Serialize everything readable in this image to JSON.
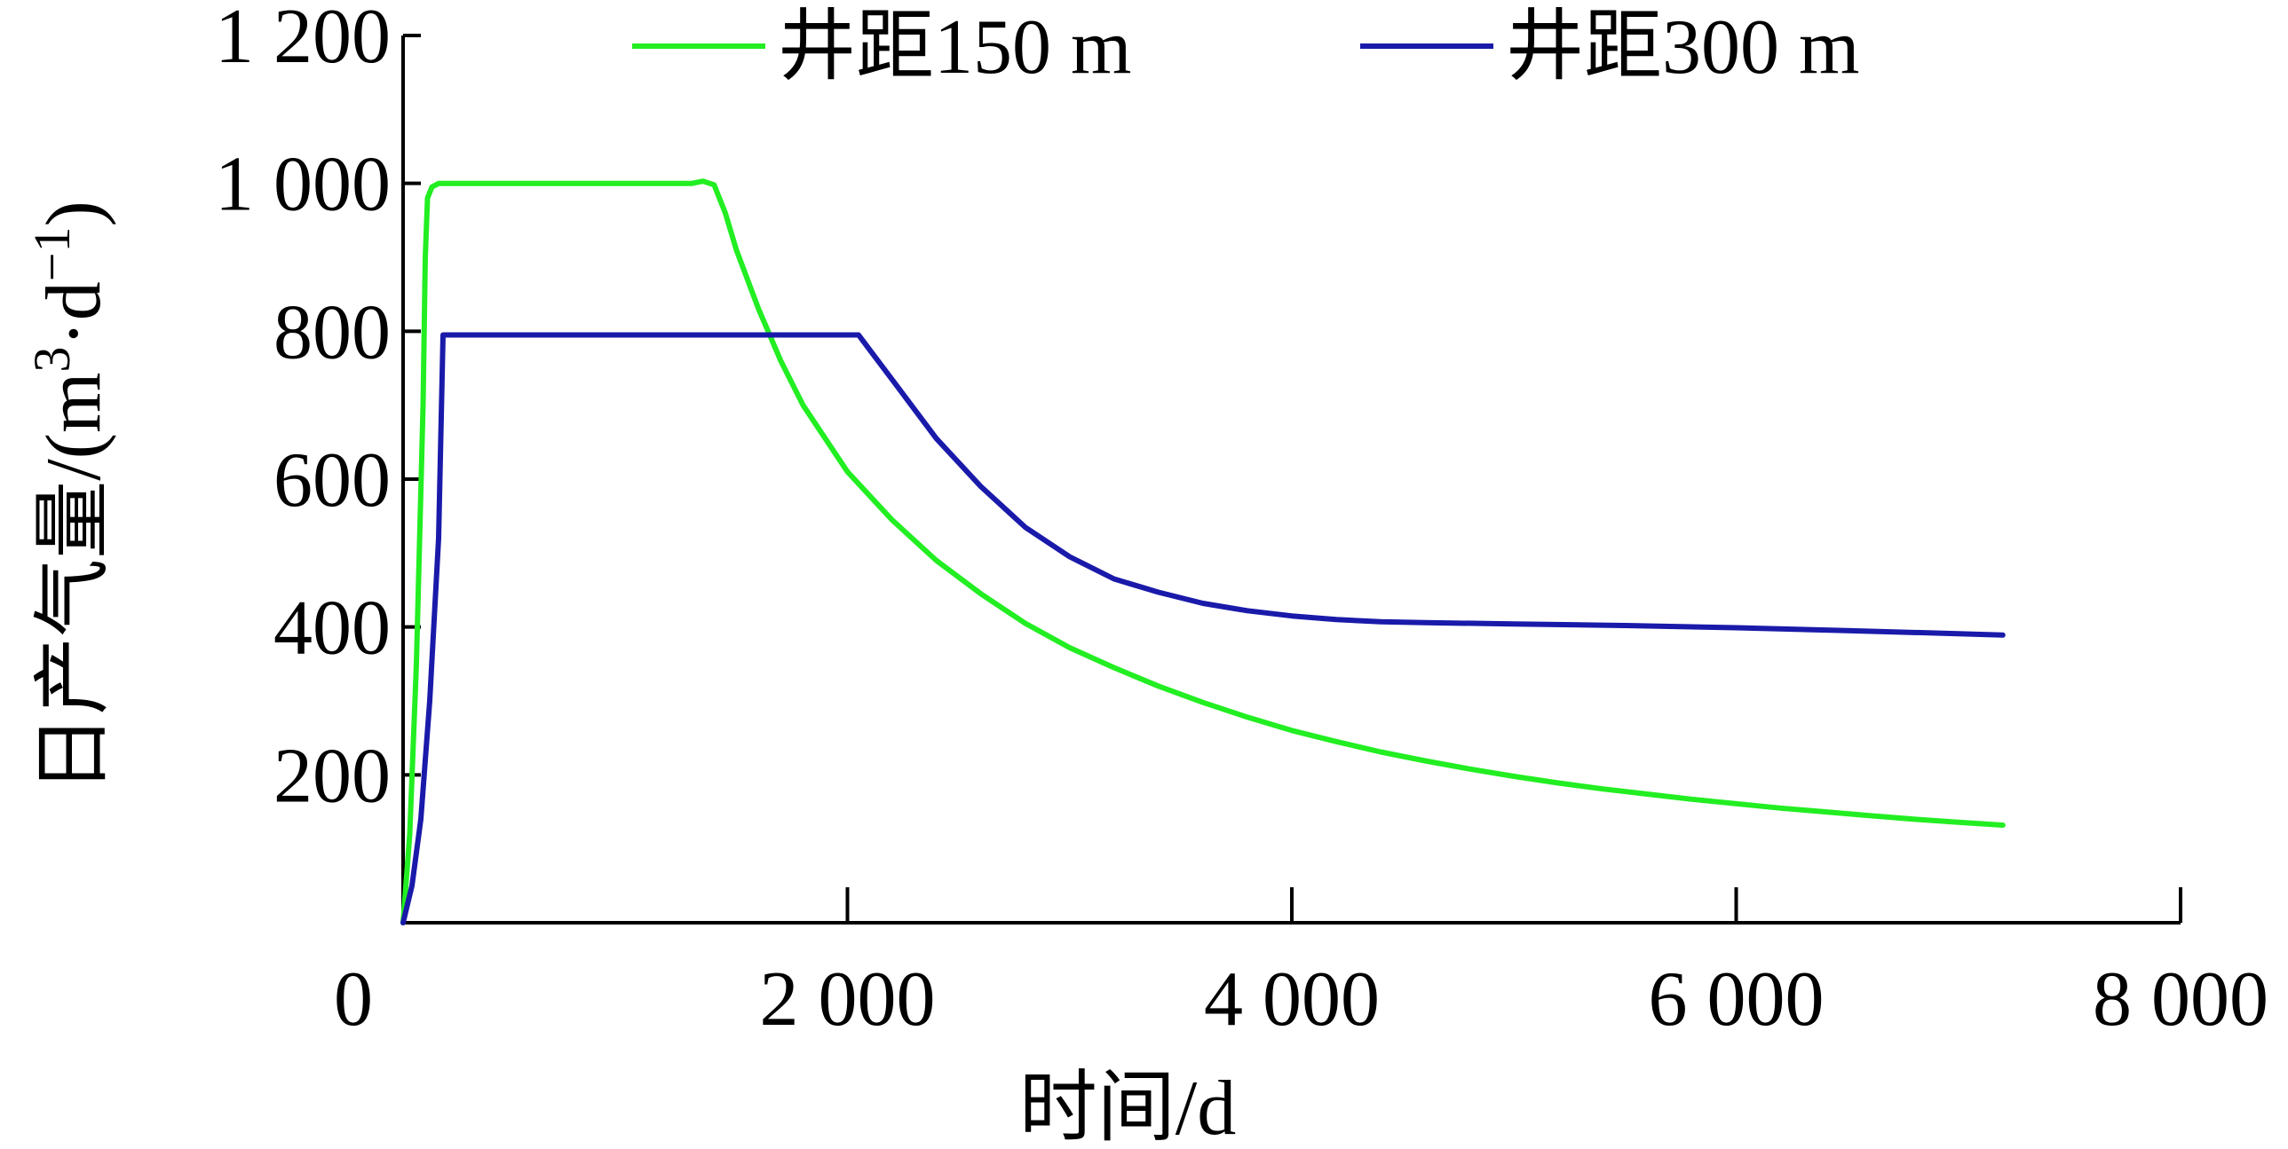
{
  "chart_data": {
    "type": "line",
    "xlabel": "时间/d",
    "ylabel": {
      "main": "日产气量/(m",
      "sup1": "3",
      "dot": "·",
      "mid": "d",
      "sup2": "−1",
      "close": ")"
    },
    "xlim": [
      0,
      8000
    ],
    "ylim": [
      0,
      1200
    ],
    "xticks": [
      {
        "value": 0,
        "label": "0"
      },
      {
        "value": 2000,
        "label": "2 000"
      },
      {
        "value": 4000,
        "label": "4 000"
      },
      {
        "value": 6000,
        "label": "6 000"
      },
      {
        "value": 8000,
        "label": "8 000"
      }
    ],
    "yticks": [
      {
        "value": 200,
        "label": "200"
      },
      {
        "value": 400,
        "label": "400"
      },
      {
        "value": 600,
        "label": "600"
      },
      {
        "value": 800,
        "label": "800"
      },
      {
        "value": 1000,
        "label": "1 000"
      },
      {
        "value": 1200,
        "label": "1 200"
      }
    ],
    "grid": false,
    "legend_position": "top",
    "series": [
      {
        "name": "井距150 m",
        "color": "#22ee22",
        "x": [
          0,
          30,
          60,
          90,
          100,
          110,
          130,
          160,
          200,
          400,
          800,
          1200,
          1300,
          1350,
          1400,
          1450,
          1500,
          1600,
          1700,
          1800,
          2000,
          2200,
          2400,
          2600,
          2800,
          3000,
          3200,
          3400,
          3600,
          3800,
          4000,
          4200,
          4400,
          4600,
          4800,
          5000,
          5200,
          5400,
          5600,
          5800,
          6000,
          6200,
          6400,
          6600,
          6800,
          7000,
          7200
        ],
        "y": [
          0,
          120,
          350,
          700,
          900,
          980,
          995,
          1000,
          1000,
          1000,
          1000,
          1000,
          1000,
          1003,
          998,
          960,
          910,
          830,
          760,
          700,
          610,
          545,
          490,
          445,
          405,
          372,
          345,
          320,
          298,
          278,
          260,
          245,
          231,
          219,
          208,
          198,
          189,
          181,
          174,
          167,
          161,
          155,
          150,
          145,
          140,
          136,
          132
        ]
      },
      {
        "name": "井距300 m",
        "color": "#1a1aaa",
        "x": [
          0,
          40,
          80,
          120,
          160,
          180,
          200,
          600,
          1000,
          1400,
          1800,
          2000,
          2050,
          2100,
          2200,
          2400,
          2600,
          2800,
          3000,
          3200,
          3400,
          3600,
          3800,
          4000,
          4200,
          4400,
          4600,
          5000,
          5500,
          6000,
          6500,
          7000,
          7200
        ],
        "y": [
          0,
          50,
          140,
          300,
          520,
          795,
          795,
          795,
          795,
          795,
          795,
          795,
          795,
          775,
          735,
          655,
          590,
          535,
          495,
          465,
          447,
          432,
          422,
          415,
          410,
          407,
          406,
          404,
          402,
          399,
          395,
          391,
          389
        ]
      }
    ]
  }
}
